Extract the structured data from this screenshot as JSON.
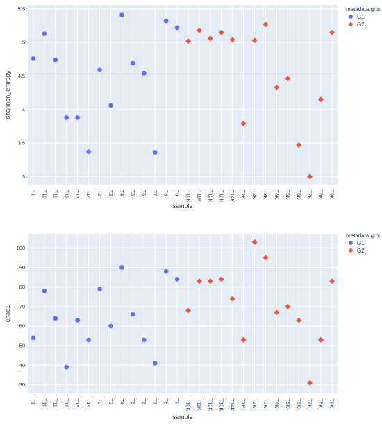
{
  "chart_data": [
    {
      "type": "scatter",
      "ylabel": "shannon_entropy",
      "xlabel": "sample",
      "ylim": [
        2.88,
        5.56
      ],
      "yticks": [
        3,
        3.5,
        4,
        4.5,
        5,
        5.5
      ],
      "ytick_labels": [
        "3",
        "3.5",
        "4",
        "4.5",
        "5",
        "5.5"
      ],
      "categories": [
        "T1",
        "T10",
        "T11",
        "T12",
        "T13",
        "T14",
        "T2",
        "T3",
        "T4",
        "T5",
        "T6",
        "T7",
        "T8",
        "T9",
        "T10K",
        "T11K",
        "T12K",
        "T13K",
        "T14K",
        "T1K",
        "T2K",
        "T3K",
        "T4K",
        "T5K",
        "T6K",
        "T7K",
        "T8K",
        "T9K"
      ],
      "grid": true,
      "legend": {
        "title": "metadata.group",
        "placement": "right",
        "entries": [
          {
            "name": "G1",
            "color": "#636efa",
            "symbol": "circle"
          },
          {
            "name": "G2",
            "color": "#ef553b",
            "symbol": "diamond"
          }
        ]
      },
      "series": [
        {
          "name": "G1",
          "color": "#636efa",
          "symbol": "circle",
          "x": [
            "T1",
            "T10",
            "T11",
            "T12",
            "T13",
            "T14",
            "T2",
            "T3",
            "T4",
            "T5",
            "T6",
            "T7",
            "T8",
            "T9"
          ],
          "values": [
            4.76,
            5.13,
            4.74,
            3.88,
            3.88,
            3.37,
            4.59,
            4.06,
            5.41,
            4.69,
            4.54,
            3.36,
            5.32,
            5.22
          ]
        },
        {
          "name": "G2",
          "color": "#ef553b",
          "symbol": "diamond",
          "x": [
            "T10K",
            "T11K",
            "T12K",
            "T13K",
            "T14K",
            "T1K",
            "T2K",
            "T3K",
            "T4K",
            "T5K",
            "T6K",
            "T7K",
            "T8K",
            "T9K"
          ],
          "values": [
            5.02,
            5.18,
            5.06,
            5.15,
            5.04,
            3.79,
            5.03,
            5.27,
            4.33,
            4.46,
            3.47,
            3.0,
            4.15,
            5.15
          ]
        }
      ]
    },
    {
      "type": "scatter",
      "ylabel": "chao1",
      "xlabel": "sample",
      "ylim": [
        25.6,
        107.2
      ],
      "yticks": [
        30,
        40,
        50,
        60,
        70,
        80,
        90,
        100
      ],
      "ytick_labels": [
        "30",
        "40",
        "50",
        "60",
        "70",
        "80",
        "90",
        "100"
      ],
      "categories": [
        "T1",
        "T10",
        "T11",
        "T12",
        "T13",
        "T14",
        "T2",
        "T3",
        "T4",
        "T5",
        "T6",
        "T7",
        "T8",
        "T9",
        "T10K",
        "T11K",
        "T12K",
        "T13K",
        "T14K",
        "T1K",
        "T2K",
        "T3K",
        "T4K",
        "T5K",
        "T6K",
        "T7K",
        "T8K",
        "T9K"
      ],
      "grid": true,
      "legend": {
        "title": "metadata.group",
        "placement": "right",
        "entries": [
          {
            "name": "G1",
            "color": "#636efa",
            "symbol": "circle"
          },
          {
            "name": "G2",
            "color": "#ef553b",
            "symbol": "diamond"
          }
        ]
      },
      "series": [
        {
          "name": "G1",
          "color": "#636efa",
          "symbol": "circle",
          "x": [
            "T1",
            "T10",
            "T11",
            "T12",
            "T13",
            "T14",
            "T2",
            "T3",
            "T4",
            "T5",
            "T6",
            "T7",
            "T8",
            "T9"
          ],
          "values": [
            54,
            78,
            64,
            39,
            63,
            53,
            79,
            60,
            90,
            66,
            53,
            41,
            88,
            84
          ]
        },
        {
          "name": "G2",
          "color": "#ef553b",
          "symbol": "diamond",
          "x": [
            "T10K",
            "T11K",
            "T12K",
            "T13K",
            "T14K",
            "T1K",
            "T2K",
            "T3K",
            "T4K",
            "T5K",
            "T6K",
            "T7K",
            "T8K",
            "T9K"
          ],
          "values": [
            68,
            83,
            83,
            84,
            74,
            53,
            103,
            95,
            67,
            70,
            63,
            31,
            53,
            83
          ]
        }
      ]
    }
  ]
}
